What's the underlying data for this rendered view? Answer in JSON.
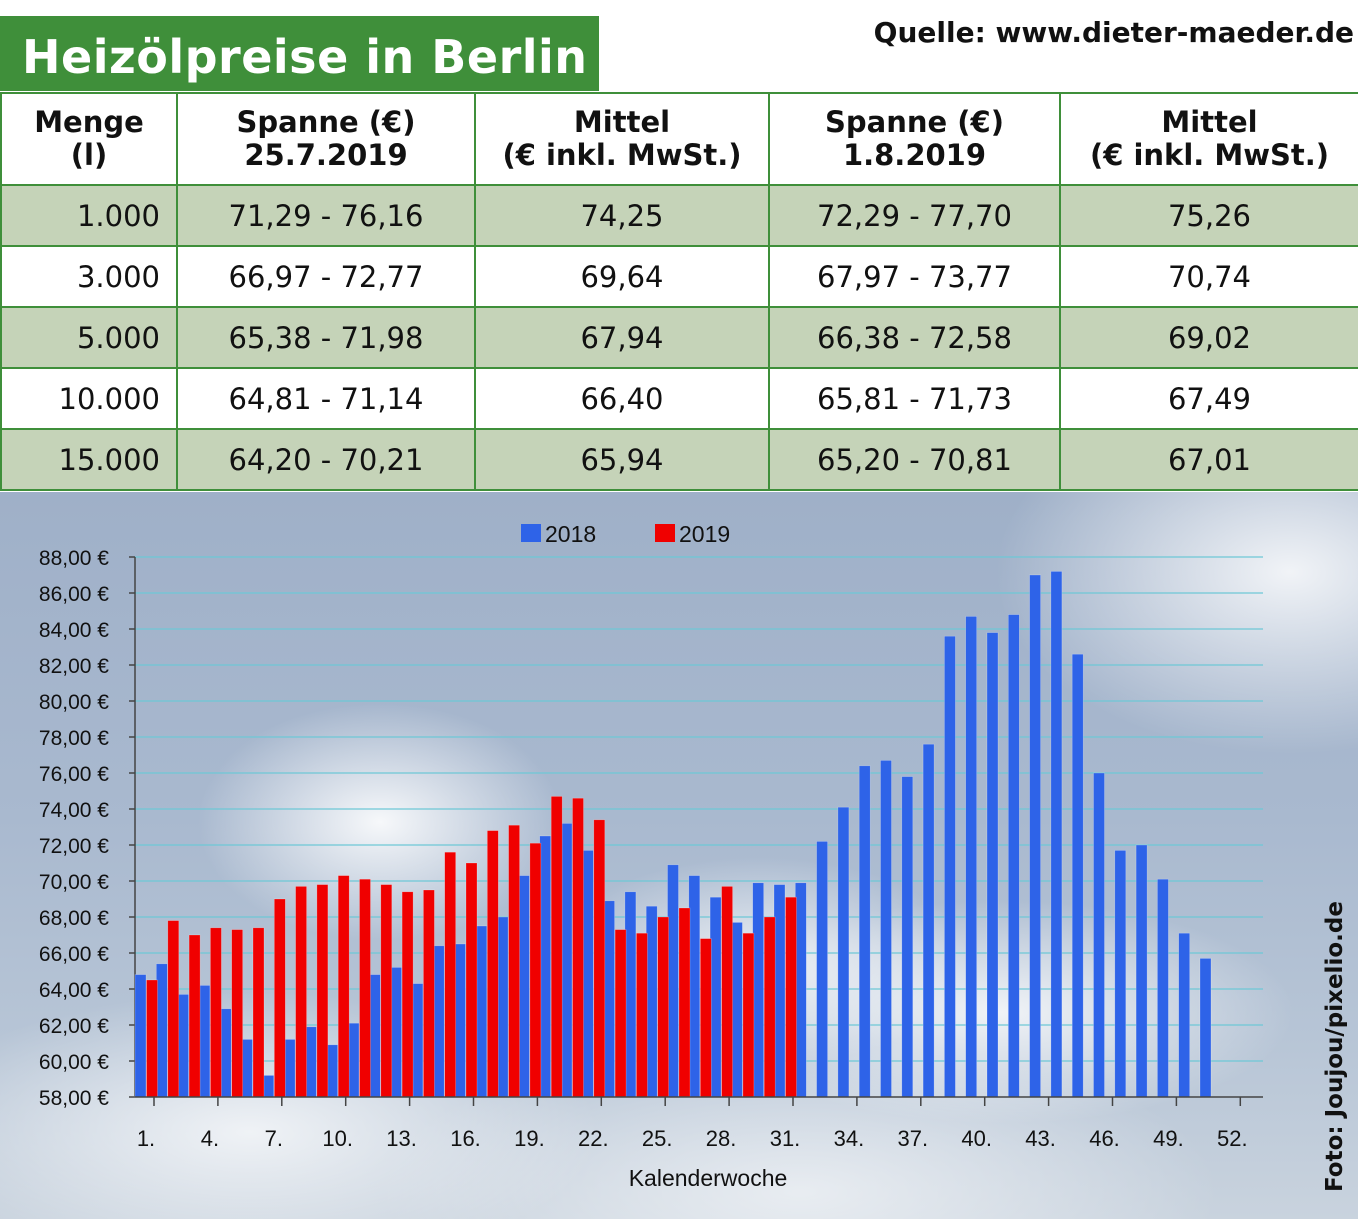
{
  "header": {
    "title": "Heizölpreise in Berlin",
    "source": "Quelle: www.dieter-maeder.de"
  },
  "table": {
    "columns": [
      {
        "line1": "Menge",
        "line2": "(l)"
      },
      {
        "line1": "Spanne (€)",
        "line2": "25.7.2019"
      },
      {
        "line1": "Mittel",
        "line2": "(€ inkl. MwSt.)"
      },
      {
        "line1": "Spanne (€)",
        "line2": "1.8.2019"
      },
      {
        "line1": "Mittel",
        "line2": "(€ inkl. MwSt.)"
      }
    ],
    "rows": [
      {
        "menge": "1.000",
        "spanne1": "71,29 - 76,16",
        "mittel1": "74,25",
        "spanne2": "72,29 - 77,70",
        "mittel2": "75,26"
      },
      {
        "menge": "3.000",
        "spanne1": "66,97 - 72,77",
        "mittel1": "69,64",
        "spanne2": "67,97 - 73,77",
        "mittel2": "70,74"
      },
      {
        "menge": "5.000",
        "spanne1": "65,38 - 71,98",
        "mittel1": "67,94",
        "spanne2": "66,38 - 72,58",
        "mittel2": "69,02"
      },
      {
        "menge": "10.000",
        "spanne1": "64,81 - 71,14",
        "mittel1": "66,40",
        "spanne2": "65,81 - 71,73",
        "mittel2": "67,49"
      },
      {
        "menge": "15.000",
        "spanne1": "64,20 - 70,21",
        "mittel1": "65,94",
        "spanne2": "65,20 - 70,81",
        "mittel2": "67,01"
      }
    ]
  },
  "chart_data": {
    "type": "bar",
    "xlabel": "Kalenderwoche",
    "ylabel": "",
    "ylim": [
      58,
      88
    ],
    "y_ticks": [
      "58,00 €",
      "60,00 €",
      "62,00 €",
      "64,00 €",
      "66,00 €",
      "68,00 €",
      "70,00 €",
      "72,00 €",
      "74,00 €",
      "76,00 €",
      "78,00 €",
      "80,00 €",
      "82,00 €",
      "84,00 €",
      "86,00 €",
      "88,00 €"
    ],
    "x_ticks": [
      "1.",
      "4.",
      "7.",
      "10.",
      "13.",
      "16.",
      "19.",
      "22.",
      "25.",
      "28.",
      "31.",
      "34.",
      "37.",
      "40.",
      "43.",
      "46.",
      "49.",
      "52."
    ],
    "legend_position": "top-center",
    "grid": true,
    "series": [
      {
        "name": "2018",
        "color": "#2e63e8",
        "start_week": 1,
        "values": [
          64.8,
          65.4,
          63.7,
          64.2,
          62.9,
          61.2,
          59.2,
          61.2,
          61.9,
          60.9,
          62.1,
          64.8,
          65.2,
          64.3,
          66.4,
          66.5,
          67.5,
          68.0,
          70.3,
          72.5,
          73.2,
          71.7,
          68.9,
          69.4,
          68.6,
          70.9,
          70.3,
          69.1,
          67.7,
          69.9,
          69.8,
          69.9,
          72.2,
          74.1,
          76.4,
          76.7,
          75.8,
          77.6,
          83.6,
          84.7,
          83.8,
          84.8,
          87.0,
          87.2,
          82.6,
          76.0,
          71.7,
          72.0,
          70.1,
          67.1,
          65.7
        ]
      },
      {
        "name": "2019",
        "color": "#f00000",
        "start_week": 1,
        "values": [
          64.5,
          67.8,
          67.0,
          67.4,
          67.3,
          67.4,
          69.0,
          69.7,
          69.8,
          70.3,
          70.1,
          69.8,
          69.4,
          69.5,
          71.6,
          71.0,
          72.8,
          73.1,
          72.1,
          74.7,
          74.6,
          73.4,
          67.3,
          67.1,
          68.0,
          68.5,
          66.8,
          69.7,
          67.1,
          68.0,
          69.1
        ]
      }
    ]
  },
  "credit": "Foto: Joujou/pixelio.de"
}
